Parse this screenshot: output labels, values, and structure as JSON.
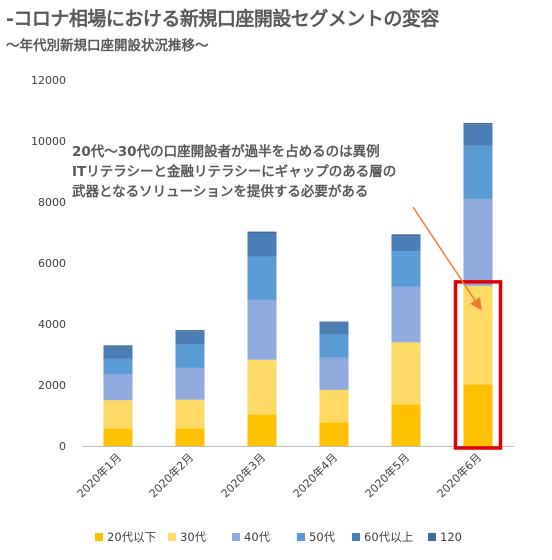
{
  "header": {
    "title": "-コロナ相場における新規口座開設セグメントの変容",
    "subtitle": "～年代別新規口座開設状況推移～"
  },
  "annotation": {
    "lines": [
      "20代～30代の口座開設者が過半を占めるのは異例",
      "ITリテラシーと金融リテラシーにギャップのある層の",
      "武器となるソリューションを提供する必要がある"
    ],
    "arrow_color": "#ed7d31"
  },
  "highlight": {
    "category_index": 5,
    "color": "#e00000"
  },
  "chart_data": {
    "type": "bar",
    "stacked": true,
    "categories": [
      "2020年1月",
      "2020年2月",
      "2020年3月",
      "2020年4月",
      "2020年5月",
      "2020年6月"
    ],
    "series": [
      {
        "name": "20代以下",
        "color": "#ffc000",
        "values": [
          570,
          580,
          1030,
          780,
          1360,
          2020
        ]
      },
      {
        "name": "30代",
        "color": "#ffd966",
        "values": [
          930,
          940,
          1800,
          1060,
          2040,
          3230
        ]
      },
      {
        "name": "40代",
        "color": "#8faadc",
        "values": [
          860,
          1040,
          1960,
          1060,
          1830,
          2850
        ]
      },
      {
        "name": "50代",
        "color": "#5b9bd5",
        "values": [
          510,
          760,
          1420,
          760,
          1160,
          1750
        ]
      },
      {
        "name": "60代以上",
        "color": "#4a7eb5",
        "values": [
          380,
          440,
          760,
          380,
          490,
          700
        ]
      },
      {
        "name": "120",
        "color": "#3d6a9a",
        "values": [
          50,
          40,
          60,
          40,
          60,
          40
        ]
      }
    ],
    "yticks": [
      0,
      2000,
      4000,
      6000,
      8000,
      10000,
      12000
    ],
    "ylim": [
      0,
      12000
    ],
    "xlabel": "",
    "ylabel": "",
    "grid": false,
    "legend_position": "bottom"
  }
}
